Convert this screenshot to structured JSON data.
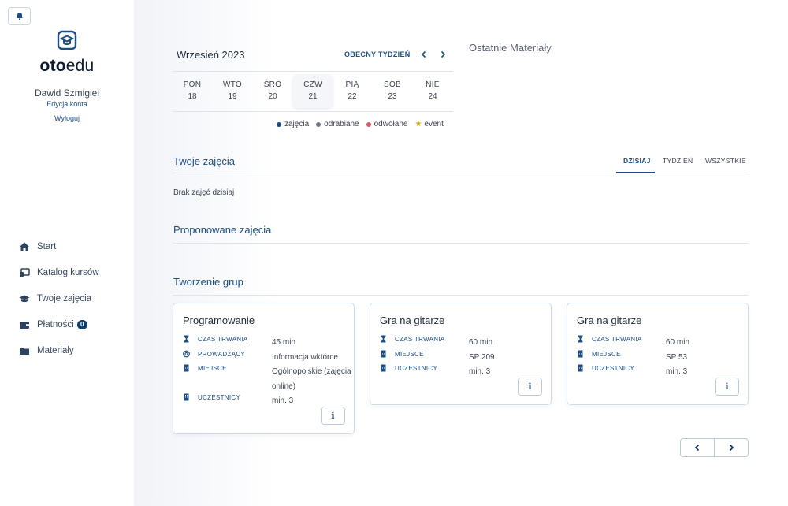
{
  "sidebar": {
    "logo": {
      "bold": "oto",
      "normal": "edu"
    },
    "user_name": "Dawid Szmigiel",
    "edit_account": "Edycja konta",
    "logout": "Wyloguj",
    "nav": [
      {
        "label": "Start",
        "icon": "home-icon"
      },
      {
        "label": "Katalog kursów",
        "icon": "catalog-icon"
      },
      {
        "label": "Twoje zajęcia",
        "icon": "graduation-cap-icon"
      },
      {
        "label": "Płatności",
        "icon": "wallet-icon",
        "badge": "0"
      },
      {
        "label": "Materiały",
        "icon": "folder-icon"
      }
    ]
  },
  "calendar": {
    "month_title": "Wrzesień 2023",
    "current_week": "OBECNY TYDZIEŃ",
    "days": [
      {
        "name": "PON",
        "date": "18"
      },
      {
        "name": "WTO",
        "date": "19"
      },
      {
        "name": "ŚRO",
        "date": "20"
      },
      {
        "name": "CZW",
        "date": "21",
        "selected": true
      },
      {
        "name": "PIĄ",
        "date": "22"
      },
      {
        "name": "SOB",
        "date": "23"
      },
      {
        "name": "NIE",
        "date": "24"
      }
    ],
    "legend": [
      {
        "label": "zajęcia",
        "color": "#1c4e84",
        "type": "dot"
      },
      {
        "label": "odrabiane",
        "color": "#6b7585",
        "type": "dot"
      },
      {
        "label": "odwołane",
        "color": "#e25563",
        "type": "dot"
      },
      {
        "label": "event",
        "color": "#e0a414",
        "type": "star"
      }
    ]
  },
  "recent_materials": {
    "title": "Ostatnie Materiały"
  },
  "your_classes": {
    "title": "Twoje zajęcia",
    "tabs": [
      "DZISIAJ",
      "TYDZIEŃ",
      "WSZYSTKIE"
    ],
    "active_tab": "DZISIAJ",
    "empty_text": "Brak zajęć dzisiaj"
  },
  "proposed": {
    "title": "Proponowane zajęcia"
  },
  "groups": {
    "title": "Tworzenie grup",
    "cards": [
      {
        "title": "Programowanie",
        "rows": [
          {
            "label": "CZAS TRWANIA",
            "value": "45 min",
            "icon": "hourglass-icon"
          },
          {
            "label": "PROWADZĄCY",
            "value": "Informacja wktórce",
            "icon": "at-icon"
          },
          {
            "label": "MIEJSCE",
            "value": "Ogólnopolskie (zajęcia online)",
            "icon": "building-icon"
          },
          {
            "label": "UCZESTNICY",
            "value": "min. 3",
            "icon": "building-icon"
          }
        ],
        "info": "i"
      },
      {
        "title": "Gra na gitarze",
        "rows": [
          {
            "label": "CZAS TRWANIA",
            "value": "60 min",
            "icon": "hourglass-icon"
          },
          {
            "label": "MIEJSCE",
            "value": "SP 209",
            "icon": "building-icon"
          },
          {
            "label": "UCZESTNICY",
            "value": "min. 3",
            "icon": "building-icon"
          }
        ],
        "info": "i"
      },
      {
        "title": "Gra na gitarze",
        "rows": [
          {
            "label": "CZAS TRWANIA",
            "value": "60 min",
            "icon": "hourglass-icon"
          },
          {
            "label": "MIEJSCE",
            "value": "SP 53",
            "icon": "building-icon"
          },
          {
            "label": "UCZESTNICY",
            "value": "min. 3",
            "icon": "building-icon"
          }
        ],
        "info": "i"
      }
    ]
  },
  "colors": {
    "accent": "#1c4e84",
    "text": "#3a4250"
  }
}
